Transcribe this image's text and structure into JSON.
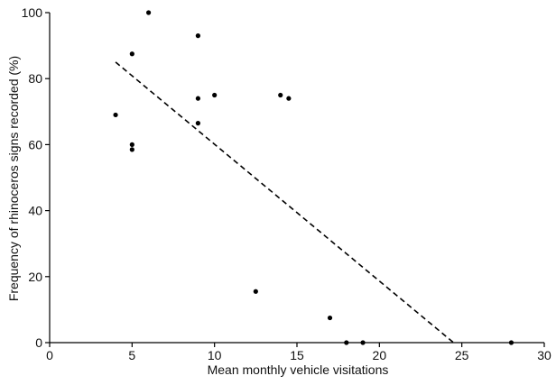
{
  "chart_data": {
    "type": "scatter",
    "title": "",
    "xlabel": "Mean monthly vehicle visitations",
    "ylabel": "Frequency of rhinoceros signs recorded (%)",
    "xlim": [
      0,
      30
    ],
    "ylim": [
      0,
      100
    ],
    "xticks": [
      0,
      5,
      10,
      15,
      20,
      25,
      30
    ],
    "yticks": [
      0,
      20,
      40,
      60,
      80,
      100
    ],
    "grid": false,
    "legend": "none",
    "points": [
      {
        "x": 4,
        "y": 69
      },
      {
        "x": 5,
        "y": 87.5
      },
      {
        "x": 5,
        "y": 60
      },
      {
        "x": 5,
        "y": 58.5
      },
      {
        "x": 6,
        "y": 100
      },
      {
        "x": 9,
        "y": 93
      },
      {
        "x": 9,
        "y": 74
      },
      {
        "x": 9,
        "y": 66.5
      },
      {
        "x": 10,
        "y": 75
      },
      {
        "x": 12.5,
        "y": 15.5
      },
      {
        "x": 14,
        "y": 75
      },
      {
        "x": 14.5,
        "y": 74
      },
      {
        "x": 17,
        "y": 7.5
      },
      {
        "x": 18,
        "y": 0
      },
      {
        "x": 19,
        "y": 0
      },
      {
        "x": 28,
        "y": 0
      }
    ],
    "trendline": {
      "style": "dashed",
      "x": [
        4,
        24.5
      ],
      "y": [
        85,
        0
      ]
    },
    "colors": {
      "points": "#000000",
      "axes": "#000000",
      "trendline": "#000000"
    }
  }
}
